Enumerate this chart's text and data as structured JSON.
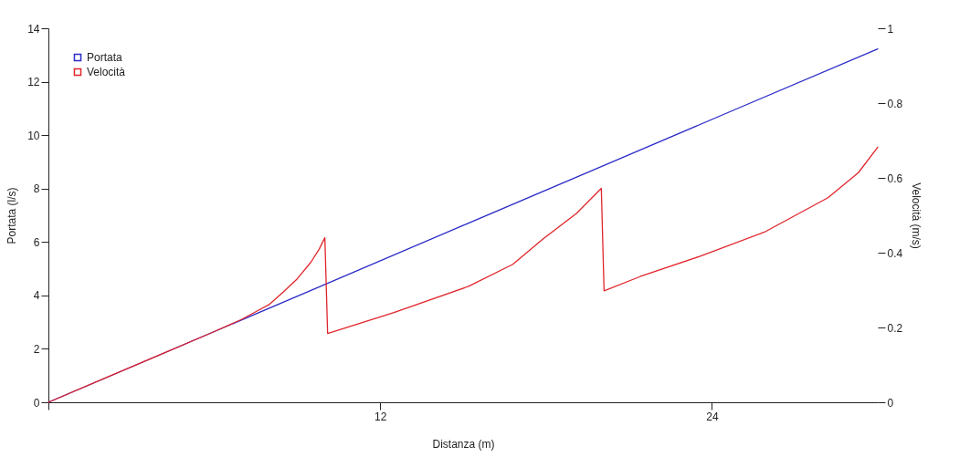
{
  "chart_data": {
    "type": "line",
    "xlabel": "Distanza (m)",
    "ylabel": "Portata (l/s)",
    "y2label": "Velocità (m/s)",
    "xlim": [
      0,
      30
    ],
    "xticks": [
      {
        "value": 0,
        "label": null
      },
      12,
      24
    ],
    "ylim": [
      0,
      14
    ],
    "yticks": [
      0,
      2,
      4,
      6,
      8,
      10,
      12,
      14
    ],
    "y2lim": [
      0,
      1
    ],
    "y2ticks": [
      0,
      0.2,
      0.4,
      0.6,
      0.8,
      1
    ],
    "legend": "top left",
    "grid": false,
    "marker": "none",
    "line_style": "solid",
    "series": [
      {
        "name": "Portata",
        "color": "#2b2bc8",
        "x": [
          0,
          10,
          15,
          20,
          25,
          30
        ],
        "values": [
          0,
          4.41,
          6.62,
          8.82,
          11.03,
          13.23
        ]
      },
      {
        "name": "Velocità",
        "color": "#e0262c",
        "axis": "y2",
        "x": [
          0,
          2,
          4,
          6,
          7,
          7.5,
          8,
          8.5,
          9,
          9.5,
          9.8,
          10,
          10.1,
          12.5,
          15.2,
          16.8,
          17.9,
          19.1,
          20,
          20.1,
          21.4,
          23.6,
          25.9,
          28.2,
          29.3,
          30
        ],
        "values": [
          0,
          0.063,
          0.126,
          0.189,
          0.222,
          0.242,
          0.262,
          0.295,
          0.33,
          0.375,
          0.41,
          0.44,
          0.184,
          0.24,
          0.31,
          0.369,
          0.437,
          0.505,
          0.572,
          0.298,
          0.336,
          0.391,
          0.455,
          0.547,
          0.614,
          0.682
        ]
      }
    ]
  }
}
